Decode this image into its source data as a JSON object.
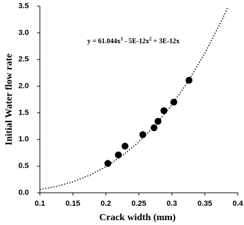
{
  "chart_data": {
    "type": "scatter",
    "x_label": "Crack width (mm)",
    "y_label": "Initial Water flow rate",
    "equation": [
      "y = 61.044x",
      "3",
      " - 5E-12x",
      "2",
      " + 3E-12x"
    ],
    "xlim": [
      0.1,
      0.4
    ],
    "ylim": [
      0,
      3.5
    ],
    "xticks": [
      0.1,
      0.15,
      0.2,
      0.25,
      0.3,
      0.35,
      0.4
    ],
    "yticks": [
      {
        "value": 0,
        "label": "0.0"
      },
      0.5,
      {
        "value": 1,
        "label": "1.0"
      },
      1.5,
      {
        "value": 2,
        "label": "2.0"
      },
      2.5,
      {
        "value": 3,
        "label": "3.0"
      },
      3.5
    ],
    "series": [
      {
        "color": "#000000",
        "x": [
          0.203,
          0.219,
          0.229,
          0.256,
          0.273,
          0.279,
          0.288,
          0.303,
          0.326
        ],
        "values": [
          0.55,
          0.71,
          0.875,
          1.09,
          1.22,
          1.34,
          1.54,
          1.7,
          2.11
        ]
      }
    ],
    "trendline": {
      "color": "#000000",
      "x": [
        0.1,
        0.125,
        0.15,
        0.175,
        0.2,
        0.225,
        0.25,
        0.275,
        0.3,
        0.325,
        0.35,
        0.375,
        0.385
      ],
      "values": [
        0.061,
        0.119,
        0.206,
        0.327,
        0.488,
        0.695,
        0.954,
        1.27,
        1.648,
        2.095,
        2.617,
        3.219,
        3.483
      ]
    }
  }
}
